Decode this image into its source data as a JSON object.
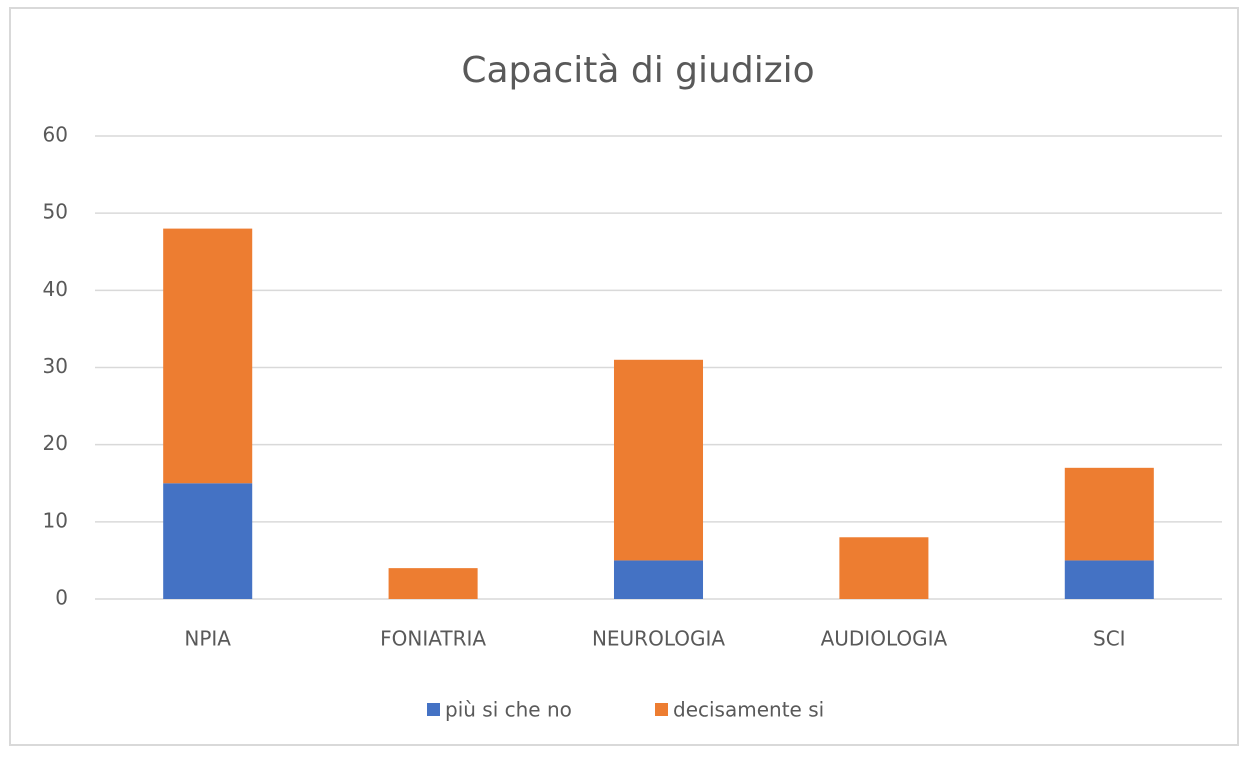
{
  "chart_data": {
    "type": "stacked_bar",
    "title": "Capacità di giudizio",
    "categories": [
      "NPIA",
      "FONIATRIA",
      "NEUROLOGIA",
      "AUDIOLOGIA",
      "SCI"
    ],
    "series": [
      {
        "name": "più si che no",
        "color": "#4472c4",
        "values": [
          15,
          0,
          5,
          0,
          5
        ]
      },
      {
        "name": "decisamente si",
        "color": "#ed7d31",
        "values": [
          33,
          4,
          26,
          8,
          12
        ]
      }
    ],
    "ylim": [
      0,
      60
    ],
    "yticks": [
      0,
      10,
      20,
      30,
      40,
      50,
      60
    ],
    "grid": true,
    "legend": "bottom"
  }
}
